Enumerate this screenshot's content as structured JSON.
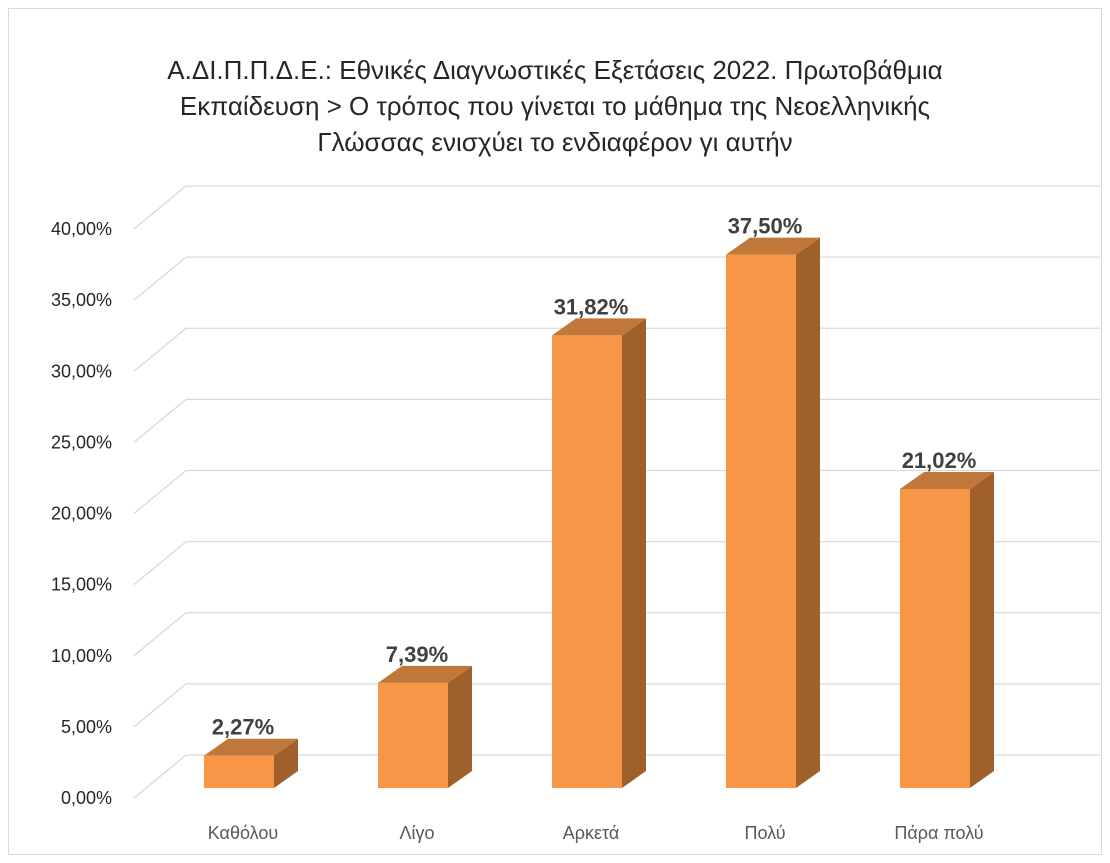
{
  "chart_data": {
    "type": "bar",
    "title_lines": [
      "Α.ΔΙ.Π.Π.Δ.Ε.: Εθνικές Διαγνωστικές Εξετάσεις 2022. Πρωτοβάθμια",
      "Εκπαίδευση > Ο τρόπος που γίνεται το μάθημα της Νεοελληνικής",
      "Γλώσσας ενισχύει το ενδιαφέρον γι αυτήν"
    ],
    "categories": [
      "Καθόλου",
      "Λίγο",
      "Αρκετά",
      "Πολύ",
      "Πάρα πολύ"
    ],
    "values": [
      2.27,
      7.39,
      31.82,
      37.5,
      21.02
    ],
    "data_labels": [
      "2,27%",
      "7,39%",
      "31,82%",
      "37,50%",
      "21,02%"
    ],
    "y_ticks": [
      0,
      5,
      10,
      15,
      20,
      25,
      30,
      35,
      40
    ],
    "y_tick_labels": [
      "0,00%",
      "5,00%",
      "10,00%",
      "15,00%",
      "20,00%",
      "25,00%",
      "30,00%",
      "35,00%",
      "40,00%"
    ],
    "ylim": [
      0,
      40
    ],
    "grid": true,
    "three_d": true,
    "colors": {
      "bar_front": "#F79646",
      "bar_side": "#A0602B",
      "bar_top": "#C0773A",
      "grid": "#D9D9D9"
    }
  }
}
